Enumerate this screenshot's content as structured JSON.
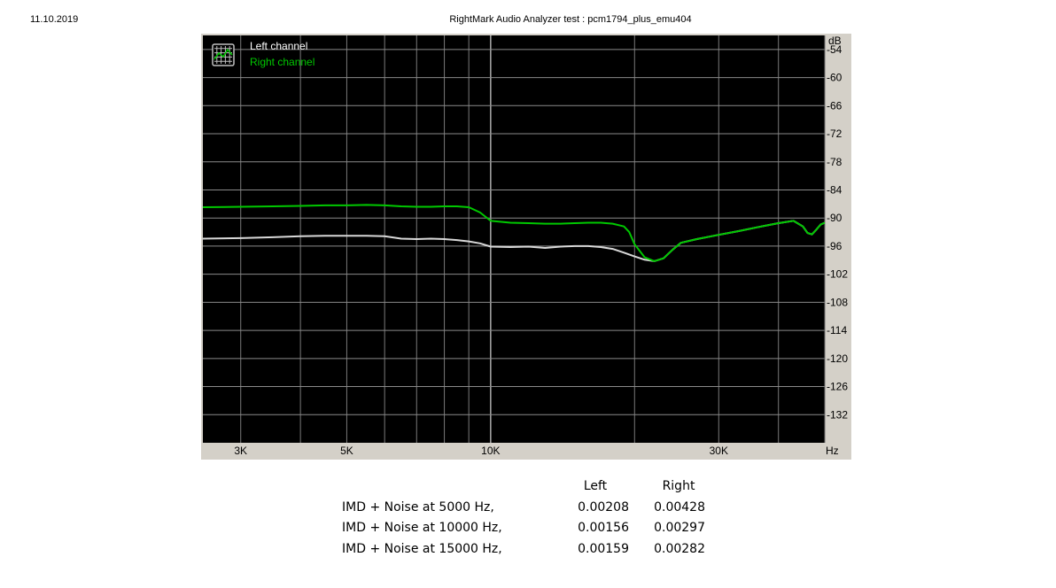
{
  "header": {
    "date": "11.10.2019",
    "title": "RightMark Audio Analyzer test : pcm1794_plus_emu404"
  },
  "chart_data": {
    "type": "line",
    "title": "RightMark Audio Analyzer test : pcm1794_plus_emu404",
    "xlabel": "Hz",
    "ylabel": "dB",
    "x_scale": "log",
    "xlim": [
      2500,
      50000
    ],
    "ylim": [
      -138,
      -51
    ],
    "x_ticks": [
      {
        "value": 3000,
        "label": "3K"
      },
      {
        "value": 5000,
        "label": "5K"
      },
      {
        "value": 10000,
        "label": "10K"
      },
      {
        "value": 30000,
        "label": "30K"
      }
    ],
    "y_ticks": [
      -54,
      -60,
      -66,
      -72,
      -78,
      -84,
      -90,
      -96,
      -102,
      -108,
      -114,
      -120,
      -126,
      -132
    ],
    "grid": true,
    "legend": "top-left",
    "background": "#000000",
    "series": [
      {
        "name": "Left channel",
        "color": "#d8d8d8",
        "x": [
          2500,
          3000,
          3500,
          4000,
          4500,
          5000,
          5500,
          6000,
          6500,
          7000,
          7500,
          8000,
          8500,
          9000,
          9500,
          10000,
          11000,
          12000,
          13000,
          14000,
          15000,
          16000,
          17000,
          18000,
          19000,
          20000,
          21000,
          22000,
          23000,
          24000,
          25000,
          27000,
          30000,
          33000,
          36000,
          40000,
          43000,
          45000,
          46000,
          47000,
          48000,
          49000,
          50000
        ],
        "y": [
          -94.4,
          -94.3,
          -94.1,
          -93.9,
          -93.8,
          -93.8,
          -93.8,
          -93.9,
          -94.4,
          -94.5,
          -94.4,
          -94.5,
          -94.7,
          -95.0,
          -95.4,
          -96.1,
          -96.2,
          -96.1,
          -96.4,
          -96.1,
          -96.0,
          -96.0,
          -96.2,
          -96.6,
          -97.4,
          -98.2,
          -98.9,
          -99.2,
          -98.6,
          -96.8,
          -95.3,
          -94.5,
          -93.6,
          -92.8,
          -92.0,
          -91.1,
          -90.6,
          -91.8,
          -93.2,
          -93.5,
          -92.5,
          -91.4,
          -91.0
        ]
      },
      {
        "name": "Right channel",
        "color": "#00c800",
        "x": [
          2500,
          3000,
          3500,
          4000,
          4500,
          5000,
          5500,
          6000,
          6500,
          7000,
          7500,
          8000,
          8500,
          9000,
          9500,
          10000,
          11000,
          12000,
          13000,
          14000,
          15000,
          16000,
          17000,
          18000,
          19000,
          19500,
          20000,
          21000,
          22000,
          23000,
          24000,
          25000,
          27000,
          30000,
          33000,
          36000,
          40000,
          43000,
          45000,
          46000,
          47000,
          48000,
          49000,
          50000
        ],
        "y": [
          -87.7,
          -87.6,
          -87.5,
          -87.4,
          -87.3,
          -87.3,
          -87.2,
          -87.3,
          -87.5,
          -87.6,
          -87.6,
          -87.5,
          -87.5,
          -87.7,
          -88.8,
          -90.6,
          -91.0,
          -91.1,
          -91.2,
          -91.2,
          -91.1,
          -91.0,
          -91.0,
          -91.2,
          -91.8,
          -93.0,
          -95.6,
          -98.4,
          -99.2,
          -98.6,
          -96.8,
          -95.3,
          -94.5,
          -93.6,
          -92.8,
          -92.0,
          -91.1,
          -90.6,
          -91.8,
          -93.2,
          -93.5,
          -92.5,
          -91.4,
          -91.0
        ]
      }
    ]
  },
  "results": {
    "columns": [
      "Left",
      "Right"
    ],
    "rows": [
      {
        "label": "IMD + Noise at 5000 Hz,",
        "left": "0.00208",
        "right": "0.00428"
      },
      {
        "label": "IMD + Noise at 10000 Hz,",
        "left": "0.00156",
        "right": "0.00297"
      },
      {
        "label": "IMD + Noise at 15000 Hz,",
        "left": "0.00159",
        "right": "0.00282"
      }
    ]
  }
}
